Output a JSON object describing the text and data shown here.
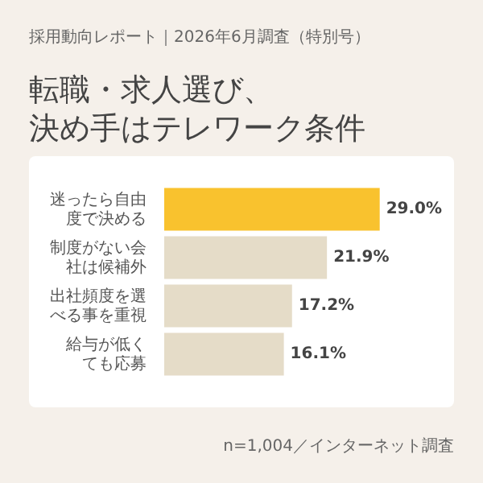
{
  "chart_data": {
    "type": "bar",
    "orientation": "horizontal",
    "subtitle": "採用動向レポート｜2026年6月調査（特別号）",
    "title": "転職・求人選び、決め手はテレワーク条件",
    "categories": [
      "迷ったら自由度で決める",
      "制度がない会社は候補外",
      "出社頻度を選べる事を重視",
      "給与が低くても応募"
    ],
    "values": [
      29.0,
      21.9,
      17.2,
      16.1
    ],
    "colors": [
      "#f9c22e",
      "#e5dcc8",
      "#e5dcc8",
      "#e5dcc8"
    ],
    "value_labels": [
      "29.0%",
      "21.9%",
      "17.2%",
      "16.1%"
    ],
    "legend": false,
    "annotations": [
      "n=1,004／インターネット調査"
    ]
  }
}
